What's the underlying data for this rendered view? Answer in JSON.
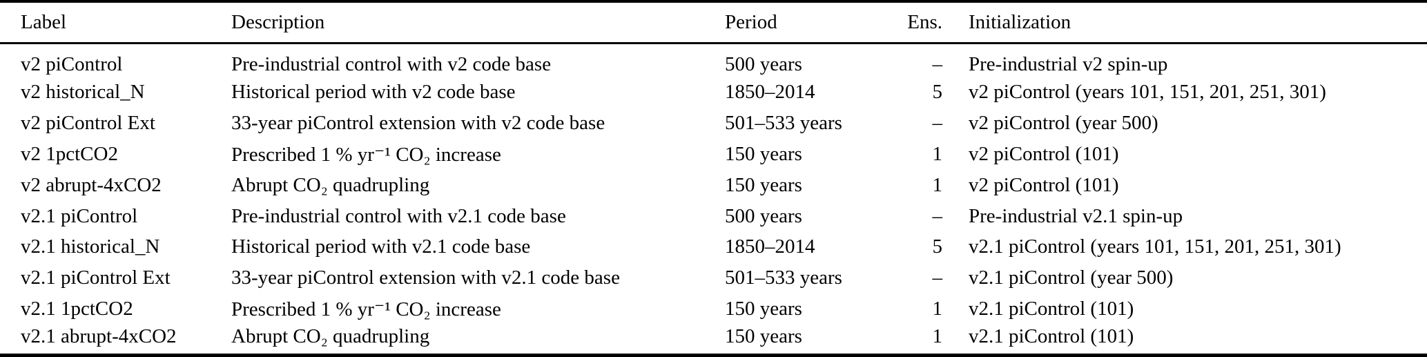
{
  "table": {
    "columns": [
      "Label",
      "Description",
      "Period",
      "Ens.",
      "Initialization"
    ],
    "rows": [
      {
        "label": "v2 piControl",
        "description": "Pre-industrial control with v2 code base",
        "period": "500 years",
        "ens": "–",
        "initialization": "Pre-industrial v2 spin-up"
      },
      {
        "label": "v2 historical_N",
        "description": "Historical period with v2 code base",
        "period": "1850–2014",
        "ens": "5",
        "initialization": "v2 piControl (years 101, 151, 201, 251, 301)"
      },
      {
        "label": "v2 piControl Ext",
        "description": "33-year piControl extension with v2 code base",
        "period": "501–533 years",
        "ens": "–",
        "initialization": "v2 piControl (year 500)"
      },
      {
        "label": "v2 1pctCO2",
        "description": "Prescribed 1 % yr⁻¹ CO₂ increase",
        "period": "150 years",
        "ens": "1",
        "initialization": "v2 piControl (101)"
      },
      {
        "label": "v2 abrupt-4xCO2",
        "description": "Abrupt CO₂ quadrupling",
        "period": "150 years",
        "ens": "1",
        "initialization": "v2 piControl (101)"
      },
      {
        "label": "v2.1 piControl",
        "description": "Pre-industrial control with v2.1 code base",
        "period": "500 years",
        "ens": "–",
        "initialization": "Pre-industrial v2.1 spin-up"
      },
      {
        "label": "v2.1 historical_N",
        "description": "Historical period with v2.1 code base",
        "period": "1850–2014",
        "ens": "5",
        "initialization": "v2.1 piControl (years 101, 151, 201, 251, 301)"
      },
      {
        "label": "v2.1 piControl Ext",
        "description": "33-year piControl extension with v2.1 code base",
        "period": "501–533 years",
        "ens": "–",
        "initialization": "v2.1 piControl (year 500)"
      },
      {
        "label": "v2.1 1pctCO2",
        "description": "Prescribed 1 % yr⁻¹ CO₂ increase",
        "period": "150 years",
        "ens": "1",
        "initialization": "v2.1 piControl (101)"
      },
      {
        "label": "v2.1 abrupt-4xCO2",
        "description": "Abrupt CO₂ quadrupling",
        "period": "150 years",
        "ens": "1",
        "initialization": "v2.1 piControl (101)"
      }
    ]
  }
}
